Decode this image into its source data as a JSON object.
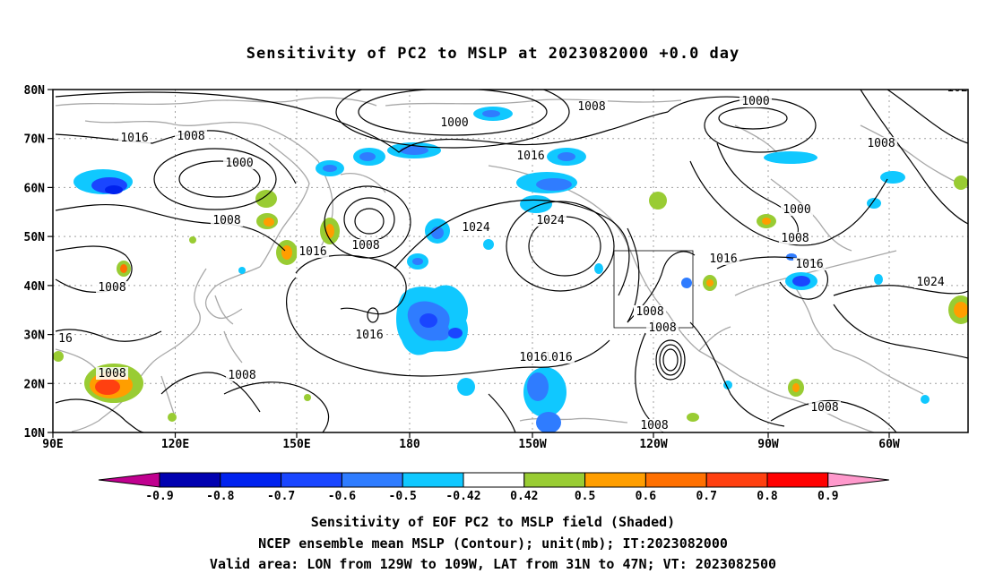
{
  "title": "Sensitivity of PC2 to MSLP at 2023082000 +0.0 day",
  "axes": {
    "lat_labels": [
      "80N",
      "70N",
      "60N",
      "50N",
      "40N",
      "30N",
      "20N",
      "10N"
    ],
    "lon_labels": [
      "90E",
      "120E",
      "150E",
      "180",
      "150W",
      "120W",
      "90W",
      "60W"
    ]
  },
  "colorbar": {
    "labels": [
      "-0.9",
      "-0.8",
      "-0.7",
      "-0.6",
      "-0.5",
      "-0.42",
      "0.42",
      "0.5",
      "0.6",
      "0.7",
      "0.8",
      "0.9"
    ],
    "colors": [
      "#c0008f",
      "#0000b0",
      "#0022ee",
      "#1a46ff",
      "#2f7cff",
      "#10c8ff",
      "#ffffff",
      "#99cc33",
      "#ff9e00",
      "#ff7000",
      "#ff4010",
      "#ff0000",
      "#ff99cc"
    ]
  },
  "contour_labels": [
    {
      "text": "1016"
    },
    {
      "text": "1008"
    },
    {
      "text": "1000"
    },
    {
      "text": "1008"
    },
    {
      "text": "1008"
    },
    {
      "text": "1000"
    },
    {
      "text": "1008"
    },
    {
      "text": "1016"
    },
    {
      "text": "1024"
    },
    {
      "text": "1024"
    },
    {
      "text": "1016"
    },
    {
      "text": "1008"
    },
    {
      "text": "1016"
    },
    {
      "text": "1016"
    },
    {
      "text": "1000"
    },
    {
      "text": "1008"
    },
    {
      "text": "1000"
    },
    {
      "text": "1008"
    },
    {
      "text": "1016"
    },
    {
      "text": "1008"
    },
    {
      "text": "1008"
    },
    {
      "text": "1016"
    },
    {
      "text": "1024"
    },
    {
      "text": "1016"
    },
    {
      "text": "16"
    },
    {
      "text": "1008"
    },
    {
      "text": "1008"
    },
    {
      "text": "1008"
    },
    {
      "text": "1008"
    },
    {
      "text": "1008"
    },
    {
      "text": "102"
    }
  ],
  "valid_box": {
    "lon_from": "129W",
    "lon_to": "109W",
    "lat_from": "31N",
    "lat_to": "47N"
  },
  "captions": {
    "line1": "Sensitivity of EOF PC2 to MSLP field (Shaded)",
    "line2": "NCEP ensemble mean MSLP (Contour); unit(mb); IT:2023082000",
    "line3": "Valid area: LON from 129W to 109W, LAT from 31N to 47N; VT: 2023082500"
  }
}
